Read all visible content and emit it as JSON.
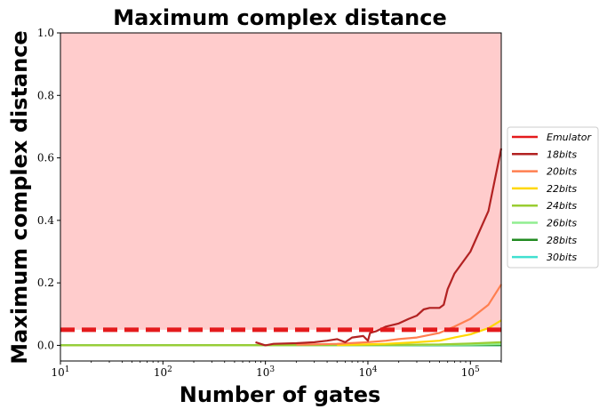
{
  "chart_data": {
    "type": "line",
    "title": "Maximum complex distance",
    "xlabel": "Number of gates",
    "ylabel": "Maximum complex distance",
    "xscale": "log",
    "xlim": [
      10,
      200000
    ],
    "ylim": [
      -0.05,
      1.0
    ],
    "x_tick_labels": [
      "10^1",
      "10^2",
      "10^3",
      "10^4",
      "10^5"
    ],
    "y_tick_labels": [
      "0.0",
      "0.2",
      "0.4",
      "0.6",
      "0.8",
      "1.0"
    ],
    "y_ticks": [
      0.0,
      0.2,
      0.4,
      0.6,
      0.8,
      1.0
    ],
    "shaded_region": {
      "from": 0.05,
      "to": 1.0,
      "color": "#ffcccc"
    },
    "legend_position": "right",
    "grid": false,
    "series": [
      {
        "name": "Emulator",
        "color": "#e41a1c",
        "style": "dashed",
        "x": [
          10,
          200000
        ],
        "y": [
          0.05,
          0.05
        ]
      },
      {
        "name": "18bits",
        "color": "#b22222",
        "style": "solid",
        "x": [
          800,
          1000,
          1200,
          2000,
          3000,
          4000,
          5000,
          6000,
          7000,
          9000,
          10000,
          10500,
          12000,
          15000,
          20000,
          25000,
          30000,
          35000,
          40000,
          50000,
          55000,
          60000,
          70000,
          100000,
          150000,
          200000
        ],
        "y": [
          0.01,
          0.0,
          0.005,
          0.007,
          0.01,
          0.015,
          0.02,
          0.01,
          0.025,
          0.03,
          0.015,
          0.04,
          0.045,
          0.06,
          0.07,
          0.085,
          0.095,
          0.115,
          0.12,
          0.12,
          0.13,
          0.18,
          0.23,
          0.3,
          0.43,
          0.63
        ]
      },
      {
        "name": "20bits",
        "color": "#ff7f50",
        "style": "solid",
        "x": [
          2000,
          5000,
          10000,
          15000,
          20000,
          30000,
          50000,
          70000,
          100000,
          150000,
          200000
        ],
        "y": [
          0.002,
          0.005,
          0.01,
          0.015,
          0.02,
          0.025,
          0.04,
          0.06,
          0.085,
          0.13,
          0.195
        ]
      },
      {
        "name": "22bits",
        "color": "#ffd700",
        "style": "solid",
        "x": [
          5000,
          15000,
          30000,
          50000,
          70000,
          100000,
          150000,
          200000
        ],
        "y": [
          0.001,
          0.005,
          0.01,
          0.015,
          0.025,
          0.035,
          0.055,
          0.08
        ]
      },
      {
        "name": "24bits",
        "color": "#9acd32",
        "style": "solid",
        "x": [
          10,
          10000,
          50000,
          100000,
          200000
        ],
        "y": [
          0.0,
          0.001,
          0.003,
          0.006,
          0.01
        ]
      },
      {
        "name": "26bits",
        "color": "#90ee90",
        "style": "solid",
        "x": [
          10,
          10000,
          100000,
          200000
        ],
        "y": [
          0.0,
          0.0005,
          0.002,
          0.004
        ]
      },
      {
        "name": "28bits",
        "color": "#228b22",
        "style": "solid",
        "x": [
          10,
          200000
        ],
        "y": [
          0.0,
          0.001
        ]
      },
      {
        "name": "30bits",
        "color": "#40e0d0",
        "style": "solid",
        "x": [
          10,
          200000
        ],
        "y": [
          0.0,
          0.0
        ]
      }
    ]
  }
}
